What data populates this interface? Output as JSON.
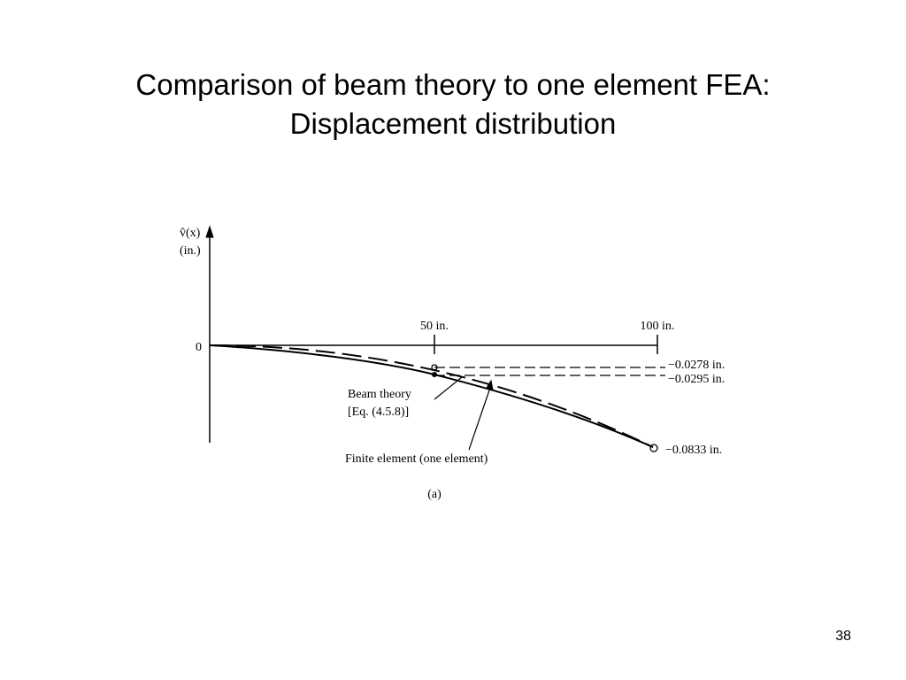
{
  "slide": {
    "title_lines": [
      "Comparison of beam theory to one element FEA:",
      "Displacement distribution"
    ],
    "figure": {
      "y_axis_label": [
        "v̂(x)",
        "(in.)"
      ],
      "origin_label": "0",
      "x_labels": [
        "50 in.",
        "100 in."
      ],
      "value_labels": [
        "−0.0278 in.",
        "−0.0295 in.",
        "−0.0833 in."
      ],
      "beam_theory_label": [
        "Beam theory",
        "[Eq. (4.5.8)]"
      ],
      "finite_element_label": "Finite element (one element)",
      "caption": "(a)"
    },
    "page_number": "38"
  }
}
